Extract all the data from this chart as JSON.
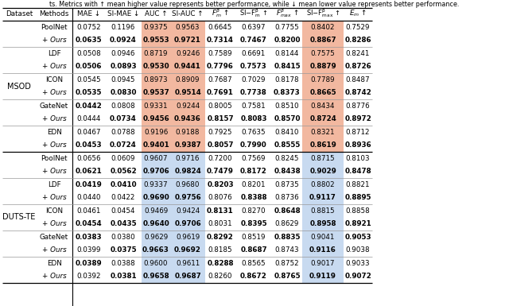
{
  "caption": "ts. Metrics with ↑ mean higher value represents better performance, while ↓ mean lower value represents better performance.",
  "datasets": [
    "MSOD",
    "DUTS-TE"
  ],
  "methods": [
    "PoolNet",
    "LDF",
    "ICON",
    "GateNet",
    "EDN"
  ],
  "highlight_color_msod": "#f2b8a0",
  "highlight_color_duts": "#c8daf0",
  "bg_color": "#ffffff",
  "font_size": 6.3,
  "data": {
    "MSOD": {
      "PoolNet": {
        "base": [
          "0.0752",
          "0.1196",
          "0.9375",
          "0.9563",
          "0.6645",
          "0.6397",
          "0.7755",
          "0.8402",
          "0.7529"
        ],
        "ours": [
          "0.0635",
          "0.0924",
          "0.9553",
          "0.9721",
          "0.7314",
          "0.7467",
          "0.8200",
          "0.8867",
          "0.8286"
        ],
        "base_bold": [
          false,
          false,
          false,
          false,
          false,
          false,
          false,
          false,
          false
        ],
        "ours_bold": [
          true,
          true,
          true,
          true,
          true,
          true,
          true,
          true,
          true
        ]
      },
      "LDF": {
        "base": [
          "0.0508",
          "0.0946",
          "0.8719",
          "0.9246",
          "0.7589",
          "0.6691",
          "0.8144",
          "0.7575",
          "0.8241"
        ],
        "ours": [
          "0.0506",
          "0.0893",
          "0.9530",
          "0.9441",
          "0.7796",
          "0.7573",
          "0.8415",
          "0.8879",
          "0.8726"
        ],
        "base_bold": [
          false,
          false,
          false,
          false,
          false,
          false,
          false,
          false,
          false
        ],
        "ours_bold": [
          true,
          true,
          true,
          true,
          true,
          true,
          true,
          true,
          true
        ]
      },
      "ICON": {
        "base": [
          "0.0545",
          "0.0945",
          "0.8973",
          "0.8909",
          "0.7687",
          "0.7029",
          "0.8178",
          "0.7789",
          "0.8487"
        ],
        "ours": [
          "0.0535",
          "0.0830",
          "0.9537",
          "0.9514",
          "0.7691",
          "0.7738",
          "0.8373",
          "0.8665",
          "0.8742"
        ],
        "base_bold": [
          false,
          false,
          false,
          false,
          false,
          false,
          false,
          false,
          false
        ],
        "ours_bold": [
          true,
          true,
          true,
          true,
          true,
          true,
          true,
          true,
          true
        ]
      },
      "GateNet": {
        "base": [
          "0.0442",
          "0.0808",
          "0.9331",
          "0.9244",
          "0.8005",
          "0.7581",
          "0.8510",
          "0.8434",
          "0.8776"
        ],
        "ours": [
          "0.0444",
          "0.0734",
          "0.9456",
          "0.9436",
          "0.8157",
          "0.8083",
          "0.8570",
          "0.8724",
          "0.8972"
        ],
        "base_bold": [
          true,
          false,
          false,
          false,
          false,
          false,
          false,
          false,
          false
        ],
        "ours_bold": [
          false,
          true,
          true,
          true,
          true,
          true,
          true,
          true,
          true
        ]
      },
      "EDN": {
        "base": [
          "0.0467",
          "0.0788",
          "0.9196",
          "0.9188",
          "0.7925",
          "0.7635",
          "0.8410",
          "0.8321",
          "0.8712"
        ],
        "ours": [
          "0.0453",
          "0.0724",
          "0.9401",
          "0.9387",
          "0.8057",
          "0.7990",
          "0.8555",
          "0.8619",
          "0.8936"
        ],
        "base_bold": [
          false,
          false,
          false,
          false,
          false,
          false,
          false,
          false,
          false
        ],
        "ours_bold": [
          true,
          true,
          true,
          true,
          true,
          true,
          true,
          true,
          true
        ]
      }
    },
    "DUTS-TE": {
      "PoolNet": {
        "base": [
          "0.0656",
          "0.0609",
          "0.9607",
          "0.9716",
          "0.7200",
          "0.7569",
          "0.8245",
          "0.8715",
          "0.8103"
        ],
        "ours": [
          "0.0621",
          "0.0562",
          "0.9706",
          "0.9824",
          "0.7479",
          "0.8172",
          "0.8438",
          "0.9029",
          "0.8478"
        ],
        "base_bold": [
          false,
          false,
          false,
          false,
          false,
          false,
          false,
          false,
          false
        ],
        "ours_bold": [
          true,
          true,
          true,
          true,
          true,
          true,
          true,
          true,
          true
        ]
      },
      "LDF": {
        "base": [
          "0.0419",
          "0.0410",
          "0.9337",
          "0.9680",
          "0.8203",
          "0.8201",
          "0.8735",
          "0.8802",
          "0.8821"
        ],
        "ours": [
          "0.0440",
          "0.0422",
          "0.9690",
          "0.9756",
          "0.8076",
          "0.8388",
          "0.8736",
          "0.9117",
          "0.8895"
        ],
        "base_bold": [
          true,
          true,
          false,
          false,
          true,
          false,
          false,
          false,
          false
        ],
        "ours_bold": [
          false,
          false,
          true,
          true,
          false,
          true,
          false,
          true,
          true
        ]
      },
      "ICON": {
        "base": [
          "0.0461",
          "0.0454",
          "0.9469",
          "0.9424",
          "0.8131",
          "0.8270",
          "0.8648",
          "0.8815",
          "0.8858"
        ],
        "ours": [
          "0.0454",
          "0.0435",
          "0.9640",
          "0.9706",
          "0.8031",
          "0.8395",
          "0.8629",
          "0.8958",
          "0.8921"
        ],
        "base_bold": [
          false,
          false,
          false,
          false,
          true,
          false,
          true,
          false,
          false
        ],
        "ours_bold": [
          true,
          true,
          true,
          true,
          false,
          true,
          false,
          true,
          true
        ]
      },
      "GateNet": {
        "base": [
          "0.0383",
          "0.0380",
          "0.9629",
          "0.9619",
          "0.8292",
          "0.8519",
          "0.8835",
          "0.9041",
          "0.9053"
        ],
        "ours": [
          "0.0399",
          "0.0375",
          "0.9663",
          "0.9692",
          "0.8185",
          "0.8687",
          "0.8743",
          "0.9116",
          "0.9038"
        ],
        "base_bold": [
          true,
          false,
          false,
          false,
          true,
          false,
          true,
          false,
          true
        ],
        "ours_bold": [
          false,
          true,
          true,
          true,
          false,
          true,
          false,
          true,
          false
        ]
      },
      "EDN": {
        "base": [
          "0.0389",
          "0.0388",
          "0.9600",
          "0.9611",
          "0.8288",
          "0.8565",
          "0.8752",
          "0.9017",
          "0.9033"
        ],
        "ours": [
          "0.0392",
          "0.0381",
          "0.9658",
          "0.9687",
          "0.8260",
          "0.8672",
          "0.8765",
          "0.9119",
          "0.9072"
        ],
        "base_bold": [
          true,
          false,
          false,
          false,
          true,
          false,
          false,
          false,
          false
        ],
        "ours_bold": [
          false,
          true,
          true,
          true,
          false,
          true,
          true,
          true,
          true
        ]
      }
    }
  }
}
